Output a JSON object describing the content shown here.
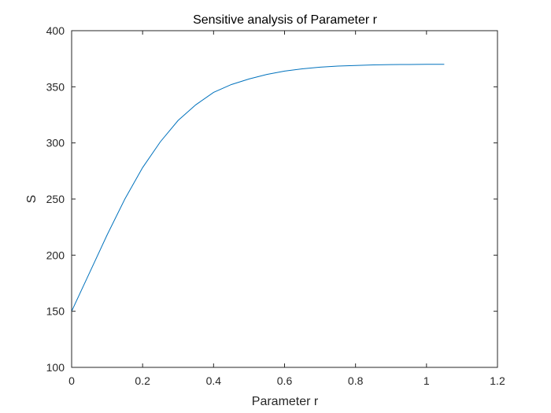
{
  "chart_data": {
    "type": "line",
    "title": "Sensitive analysis of Parameter r",
    "xlabel": "Parameter r",
    "ylabel": "S",
    "xlim": [
      0,
      1.2
    ],
    "ylim": [
      100,
      400
    ],
    "xticks": [
      0,
      0.2,
      0.4,
      0.6,
      0.8,
      1,
      1.2
    ],
    "xtick_labels": [
      "0",
      "0.2",
      "0.4",
      "0.6",
      "0.8",
      "1",
      "1.2"
    ],
    "yticks": [
      100,
      150,
      200,
      250,
      300,
      350,
      400
    ],
    "ytick_labels": [
      "100",
      "150",
      "200",
      "250",
      "300",
      "350",
      "400"
    ],
    "grid": false,
    "series": [
      {
        "color": "#0072BD",
        "x": [
          0.0,
          0.05,
          0.1,
          0.15,
          0.2,
          0.25,
          0.3,
          0.35,
          0.4,
          0.45,
          0.5,
          0.55,
          0.6,
          0.65,
          0.7,
          0.75,
          0.8,
          0.85,
          0.9,
          0.95,
          1.0,
          1.05
        ],
        "y": [
          150,
          184,
          218,
          250,
          278,
          301,
          320,
          334,
          345,
          352,
          357,
          361,
          364,
          366,
          367.5,
          368.5,
          369,
          369.5,
          369.8,
          369.9,
          370,
          370
        ]
      }
    ]
  }
}
